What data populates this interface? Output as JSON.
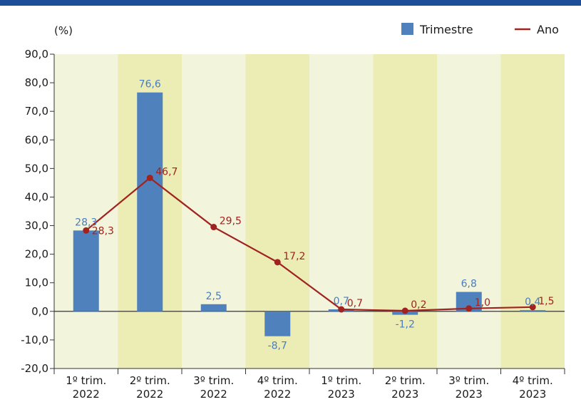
{
  "chart_data": {
    "type": "bar",
    "unit_label": "(%)",
    "categories": [
      [
        "1º trim.",
        "2022"
      ],
      [
        "2º trim.",
        "2022"
      ],
      [
        "3º trim.",
        "2022"
      ],
      [
        "4º trim.",
        "2022"
      ],
      [
        "1º trim.",
        "2023"
      ],
      [
        "2º trim.",
        "2023"
      ],
      [
        "3º trim.",
        "2023"
      ],
      [
        "4º trim.",
        "2023"
      ]
    ],
    "ylim": [
      -20,
      90
    ],
    "yticks": [
      -20,
      -10,
      0,
      10,
      20,
      30,
      40,
      50,
      60,
      70,
      80,
      90
    ],
    "ytick_labels": [
      "-20,0",
      "-10,0",
      "0,0",
      "10,0",
      "20,0",
      "30,0",
      "40,0",
      "50,0",
      "60,0",
      "70,0",
      "80,0",
      "90,0"
    ],
    "series": [
      {
        "name": "Trimestre",
        "type": "bar",
        "color": "#4f81bd",
        "values": [
          28.3,
          76.6,
          2.5,
          -8.7,
          0.7,
          -1.2,
          6.8,
          0.4
        ],
        "labels": [
          "28,3",
          "76,6",
          "2,5",
          "-8,7",
          "0,7",
          "-1,2",
          "6,8",
          "0,4"
        ]
      },
      {
        "name": "Ano",
        "type": "line",
        "color": "#a0231f",
        "values": [
          28.3,
          46.7,
          29.5,
          17.2,
          0.7,
          0.2,
          1.0,
          1.5
        ],
        "labels": [
          "28,3",
          "46,7",
          "29,5",
          "17,2",
          "0,7",
          "0,2",
          "1,0",
          "1,5"
        ]
      }
    ],
    "band_colors": [
      "#f2f4dc",
      "#ebedb5"
    ],
    "legend_position": "top-right",
    "grid": false
  }
}
